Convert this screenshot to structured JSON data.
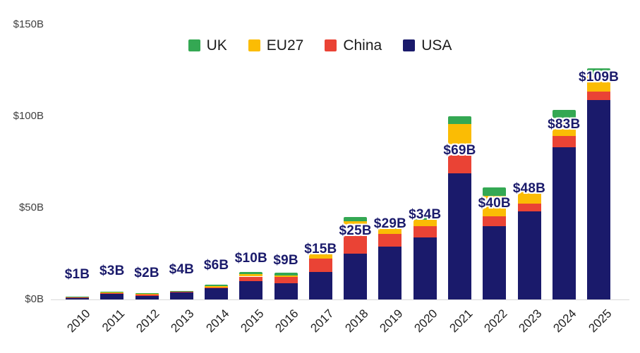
{
  "colors": {
    "uk_green": "#34a853",
    "eu27_yellow": "#fbbc04",
    "china_red": "#ea4335",
    "usa_navy": "#1a1a6b",
    "axis_text": "#3f3f3f",
    "x_tick_text": "#212121",
    "bar_label_text": "#1a1a6b",
    "baseline": "#d9d9d9",
    "background": "#ffffff"
  },
  "legend": {
    "position": "top-center",
    "items": [
      {
        "label": "UK",
        "color": "#34a853"
      },
      {
        "label": "EU27",
        "color": "#fbbc04"
      },
      {
        "label": "China",
        "color": "#ea4335"
      },
      {
        "label": "USA",
        "color": "#1a1a6b"
      }
    ]
  },
  "y_axis": {
    "ticks": [
      "$0B",
      "$50B",
      "$100B",
      "$150B"
    ],
    "values": [
      0,
      50,
      100,
      150
    ],
    "unit": "billions of US dollars"
  },
  "chart_data": {
    "type": "bar",
    "stacked": true,
    "grid": false,
    "legend_position": "top-center",
    "xlabel": "",
    "ylabel": "",
    "ylim": [
      0,
      150
    ],
    "categories": [
      "2010",
      "2011",
      "2012",
      "2013",
      "2014",
      "2015",
      "2016",
      "2017",
      "2018",
      "2019",
      "2020",
      "2021",
      "2022",
      "2023",
      "2024",
      "2025"
    ],
    "series": [
      {
        "name": "UK",
        "color": "#34a853",
        "values": [
          0.1,
          0.3,
          0.4,
          0.1,
          0.9,
          1.2,
          1.3,
          0.5,
          2.3,
          0.5,
          1.5,
          4.5,
          4.8,
          4.0,
          4.5,
          3.5
        ]
      },
      {
        "name": "EU27",
        "color": "#fbbc04",
        "values": [
          0.4,
          0.5,
          0.3,
          0.4,
          0.6,
          1.2,
          1.0,
          2.5,
          2.7,
          2.9,
          3.4,
          12.7,
          11.0,
          6.4,
          9.8,
          9.0
        ]
      },
      {
        "name": "China",
        "color": "#ea4335",
        "values": [
          0.2,
          0.5,
          0.8,
          0.2,
          0.6,
          2.5,
          3.2,
          7.2,
          15.0,
          6.7,
          6.0,
          14.0,
          5.4,
          4.4,
          6.1,
          4.5
        ]
      },
      {
        "name": "USA",
        "color": "#1a1a6b",
        "values": [
          1,
          3,
          2,
          4,
          6,
          10,
          9,
          15,
          25,
          29,
          34,
          69,
          40,
          48,
          83,
          109
        ]
      }
    ],
    "bar_labels": [
      "$1B",
      "$3B",
      "$2B",
      "$4B",
      "$6B",
      "$10B",
      "$9B",
      "$15B",
      "$25B",
      "$29B",
      "$34B",
      "$69B",
      "$40B",
      "$48B",
      "$83B",
      "$109B"
    ],
    "bar_labels_series": "USA"
  }
}
